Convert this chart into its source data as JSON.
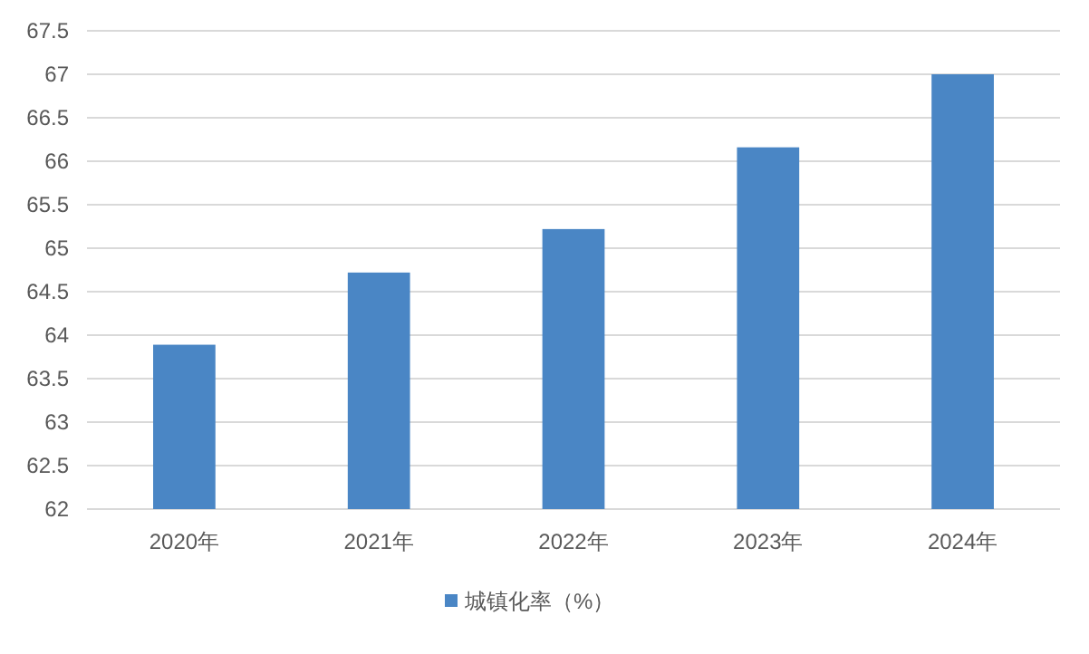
{
  "chart_data": {
    "type": "bar",
    "categories": [
      "2020年",
      "2021年",
      "2022年",
      "2023年",
      "2024年"
    ],
    "series": [
      {
        "name": "城镇化率（%）",
        "color": "#4a86c5",
        "values": [
          63.89,
          64.72,
          65.22,
          66.16,
          67.0
        ]
      }
    ],
    "ylim": [
      62,
      67.5
    ],
    "yticks": [
      62,
      62.5,
      63,
      63.5,
      64,
      64.5,
      65,
      65.5,
      66,
      66.5,
      67,
      67.5
    ],
    "grid": "y",
    "legend": "bottom"
  }
}
